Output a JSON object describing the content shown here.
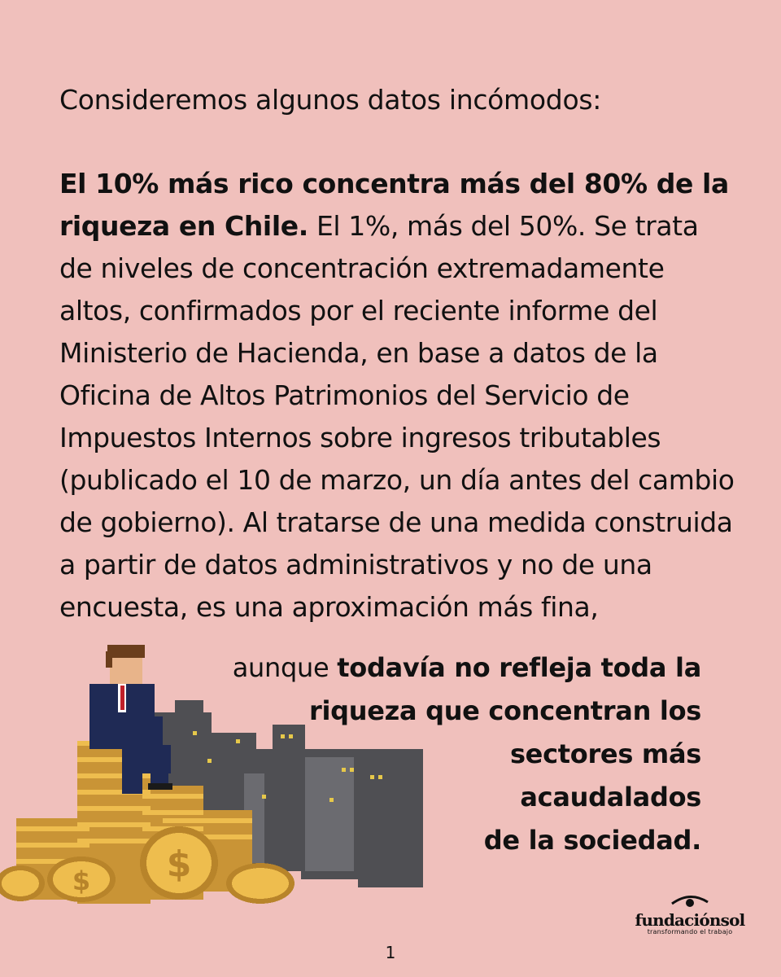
{
  "intro": "Consideremos algunos datos incómodos:",
  "paragraph": {
    "bold_lead": "El 10% más rico concentra más del 80% de la riqueza en Chile.",
    "body": " El 1%, más del 50%. Se trata de niveles de concentración extremadamente altos, confirmados por el reciente informe del Ministerio de Hacienda, en base a datos de la Oficina de Altos Patrimonios del Servicio de Impuestos Internos sobre ingresos tributables (publicado el 10 de marzo, un día antes del cambio de gobierno). Al tratarse de una medida construida a partir de datos administrativos y no de una encuesta, es una aproximación más fina,"
  },
  "closing": {
    "normal": "aunque ",
    "line1_bold": "todavía no refleja toda la",
    "line2_bold": "riqueza que concentran los",
    "line3_bold": "sectores más",
    "line4_bold": "acaudalados",
    "line5_bold": "de la sociedad."
  },
  "logo": {
    "name": "fundaciónsol",
    "tagline": "transformando el trabajo",
    "icon": "eye-swirl-icon"
  },
  "page_number": "1",
  "illustration": {
    "icon": "pixel-businessman-on-coins",
    "colors": {
      "coin": "#e8b84a",
      "coin_dark": "#b8842a",
      "suit": "#1f2a55",
      "city": "#5a5a5e",
      "window": "#e6c84a"
    }
  }
}
